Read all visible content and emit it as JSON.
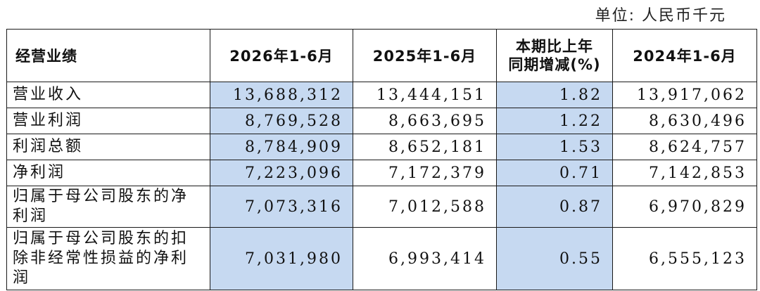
{
  "unit_label": "单位: 人民币千元",
  "table": {
    "headers": {
      "label": "经营业绩",
      "col1": "2026年1-6月",
      "col2": "2025年1-6月",
      "col3_line1": "本期比上年",
      "col3_line2": "同期增减(%)",
      "col4": "2024年1-6月"
    },
    "rows": [
      {
        "label": "营业收入",
        "y2026": "13,688,312",
        "y2025": "13,444,151",
        "change": "1.82",
        "y2024": "13,917,062"
      },
      {
        "label": "营业利润",
        "y2026": "8,769,528",
        "y2025": "8,663,695",
        "change": "1.22",
        "y2024": "8,630,496"
      },
      {
        "label": "利润总额",
        "y2026": "8,784,909",
        "y2025": "8,652,181",
        "change": "1.53",
        "y2024": "8,624,757"
      },
      {
        "label": "净利润",
        "y2026": "7,223,096",
        "y2025": "7,172,379",
        "change": "0.71",
        "y2024": "7,142,853"
      },
      {
        "label": "归属于母公司股东的净利润",
        "y2026": "7,073,316",
        "y2025": "7,012,588",
        "change": "0.87",
        "y2024": "6,970,829"
      },
      {
        "label": "归属于母公司股东的扣除非经常性损益的净利润",
        "y2026": "7,031,980",
        "y2025": "6,993,414",
        "change": "0.55",
        "y2024": "6,555,123"
      }
    ],
    "highlight_color": "#c6d9f1"
  }
}
